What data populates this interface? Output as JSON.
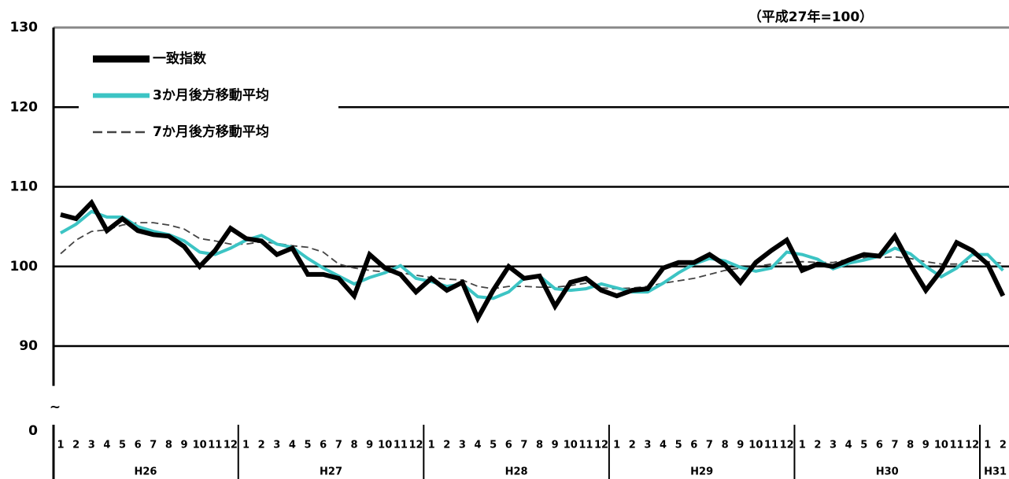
{
  "chart_data": {
    "type": "line",
    "note": "（平成27年=100）",
    "categories": [
      "1",
      "2",
      "3",
      "4",
      "5",
      "6",
      "7",
      "8",
      "9",
      "10",
      "11",
      "12",
      "1",
      "2",
      "3",
      "4",
      "5",
      "6",
      "7",
      "8",
      "9",
      "10",
      "11",
      "12",
      "1",
      "2",
      "3",
      "4",
      "5",
      "6",
      "7",
      "8",
      "9",
      "10",
      "11",
      "12",
      "1",
      "2",
      "3",
      "4",
      "5",
      "6",
      "7",
      "8",
      "9",
      "10",
      "11",
      "12",
      "1",
      "2",
      "3",
      "4",
      "5",
      "6",
      "7",
      "8",
      "9",
      "10",
      "11",
      "12",
      "1",
      "2"
    ],
    "year_labels": [
      "H26",
      "H27",
      "H28",
      "H29",
      "H30",
      "H31"
    ],
    "series": [
      {
        "name": "一致指数",
        "color": "#000000",
        "style": "solid",
        "values": [
          106.5,
          106,
          108,
          104.5,
          106,
          104.5,
          104,
          103.8,
          102.5,
          100,
          102,
          104.8,
          103.5,
          103.2,
          101.5,
          102.3,
          99,
          99,
          98.5,
          96.3,
          101.5,
          99.8,
          99,
          96.8,
          98.5,
          97,
          98,
          93.5,
          97,
          100,
          98.5,
          98.8,
          95,
          98,
          98.5,
          97,
          96.3,
          97,
          97.2,
          99.8,
          100.5,
          100.5,
          101.5,
          100.2,
          98,
          100.5,
          102,
          103.3,
          99.5,
          100.3,
          100,
          100.8,
          101.5,
          101.3,
          103.8,
          100.2,
          97,
          99.5,
          103,
          102,
          100.3,
          96.3
        ]
      },
      {
        "name": "3か月後方移動平均",
        "color": "#3cc4c4",
        "style": "solid",
        "values": [
          104.2,
          105.3,
          106.9,
          106.2,
          106.2,
          105,
          104.4,
          104,
          103.2,
          101.8,
          101.5,
          102.3,
          103.3,
          103.9,
          102.8,
          102.4,
          101,
          99.8,
          98.8,
          97.8,
          98.6,
          99.2,
          100.1,
          98.5,
          98.1,
          97.5,
          97.8,
          96.2,
          96,
          96.8,
          98.5,
          98.8,
          97.2,
          97,
          97.2,
          97.8,
          97.3,
          96.8,
          96.8,
          97.9,
          99.2,
          100.3,
          101,
          100.7,
          99.9,
          99.4,
          99.8,
          101.8,
          101.5,
          100.9,
          99.7,
          100.4,
          100.8,
          101.3,
          102.3,
          101.6,
          100,
          98.7,
          99.8,
          101.5,
          101.5,
          99.5
        ]
      },
      {
        "name": "7か月後方移動平均",
        "color": "#444444",
        "style": "dashed",
        "values": [
          101.6,
          103.3,
          104.4,
          104.6,
          105.2,
          105.5,
          105.5,
          105.2,
          104.7,
          103.5,
          103.2,
          102.8,
          102.8,
          103.1,
          102.9,
          102.6,
          102.4,
          101.8,
          100.3,
          99.8,
          99.5,
          99.3,
          99.2,
          98.9,
          98.6,
          98.4,
          98.3,
          97.5,
          97.2,
          97.5,
          97.5,
          97.4,
          97.4,
          97.6,
          97.9,
          97.3,
          97.2,
          97.3,
          97.5,
          97.9,
          98.2,
          98.5,
          99,
          99.5,
          99.8,
          100,
          100.3,
          100.5,
          100.6,
          100.5,
          100.5,
          100.9,
          101.1,
          101.1,
          101.2,
          101,
          100.6,
          100.3,
          100.3,
          100.7,
          100.6,
          100.4
        ]
      }
    ],
    "ylim": [
      85,
      130
    ],
    "yticks": [
      90,
      100,
      110,
      120,
      130
    ],
    "broken_axis_tick": 0,
    "axis_break_symbol": "~",
    "grid": true
  }
}
